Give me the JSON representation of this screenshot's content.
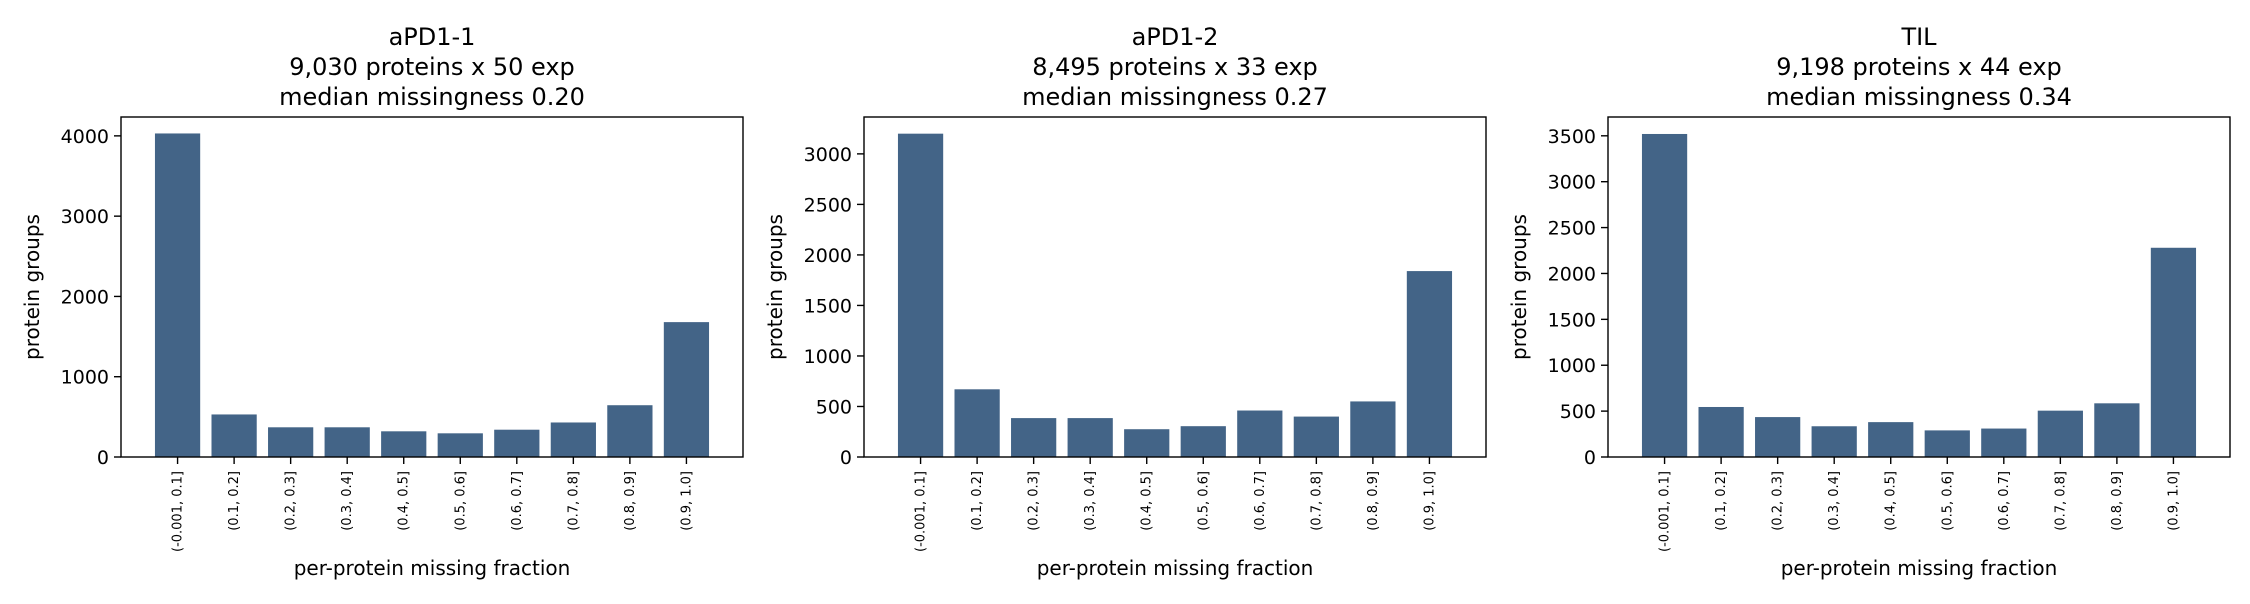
{
  "chart_data": [
    {
      "type": "bar",
      "title_lines": [
        "aPD1-1",
        "9,030 proteins x 50 exp",
        "median missingness 0.20"
      ],
      "xlabel": "per-protein missing fraction",
      "ylabel": "protein groups",
      "categories": [
        "(-0.001, 0.1]",
        "(0.1, 0.2]",
        "(0.2, 0.3]",
        "(0.3, 0.4]",
        "(0.4, 0.5]",
        "(0.5, 0.6]",
        "(0.6, 0.7]",
        "(0.7, 0.8]",
        "(0.8, 0.9]",
        "(0.9, 1.0]"
      ],
      "values": [
        4030,
        530,
        370,
        370,
        320,
        295,
        340,
        430,
        645,
        1680
      ],
      "ylim": [
        0,
        4235
      ],
      "yticks": [
        0,
        1000,
        2000,
        3000,
        4000
      ],
      "bar_color": "#436487"
    },
    {
      "type": "bar",
      "title_lines": [
        "aPD1-2",
        "8,495 proteins x 33 exp",
        "median missingness 0.27"
      ],
      "xlabel": "per-protein missing fraction",
      "ylabel": "protein groups",
      "categories": [
        "(-0.001, 0.1]",
        "(0.1, 0.2]",
        "(0.2, 0.3]",
        "(0.3, 0.4]",
        "(0.4, 0.5]",
        "(0.5, 0.6]",
        "(0.6, 0.7]",
        "(0.7, 0.8]",
        "(0.8, 0.9]",
        "(0.9, 1.0]"
      ],
      "values": [
        3200,
        670,
        385,
        385,
        275,
        305,
        460,
        400,
        550,
        1840
      ],
      "ylim": [
        0,
        3365
      ],
      "yticks": [
        0,
        500,
        1000,
        1500,
        2000,
        2500,
        3000
      ],
      "bar_color": "#436487"
    },
    {
      "type": "bar",
      "title_lines": [
        "TIL",
        "9,198 proteins x 44 exp",
        "median missingness 0.34"
      ],
      "xlabel": "per-protein missing fraction",
      "ylabel": "protein groups",
      "categories": [
        "(-0.001, 0.1]",
        "(0.1, 0.2]",
        "(0.2, 0.3]",
        "(0.3, 0.4]",
        "(0.4, 0.5]",
        "(0.5, 0.6]",
        "(0.6, 0.7]",
        "(0.7, 0.8]",
        "(0.8, 0.9]",
        "(0.9, 1.0]"
      ],
      "values": [
        3520,
        545,
        435,
        335,
        380,
        290,
        310,
        505,
        585,
        2280
      ],
      "ylim": [
        0,
        3705
      ],
      "yticks": [
        0,
        500,
        1000,
        1500,
        2000,
        2500,
        3000,
        3500
      ],
      "bar_color": "#436487"
    }
  ]
}
